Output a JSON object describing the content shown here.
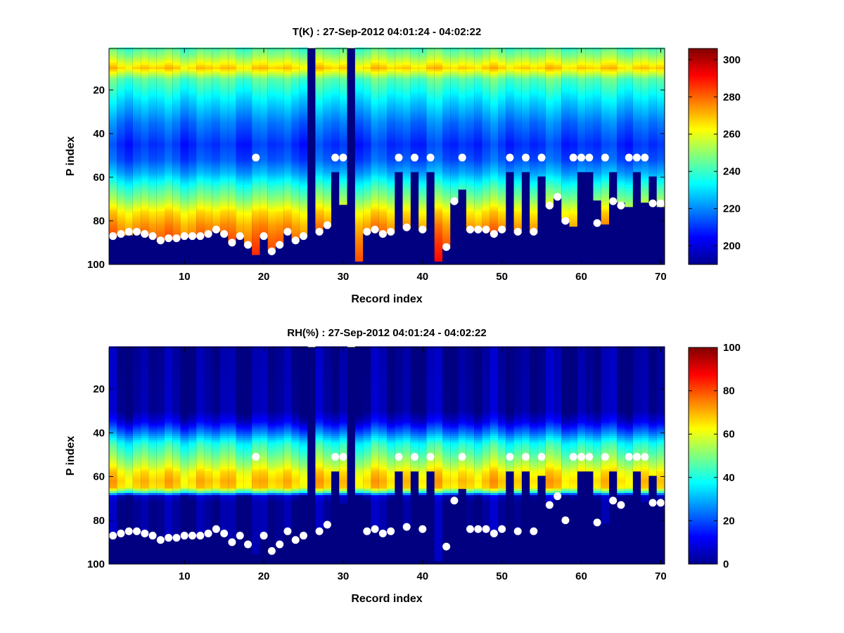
{
  "figure": {
    "background": "#ffffff"
  },
  "chart_data": [
    {
      "type": "heatmap",
      "title": "T(K) : 27-Sep-2012 04:01:24 - 04:02:22",
      "xlabel": "Record index",
      "ylabel": "P index",
      "xlim": [
        0.5,
        70.5
      ],
      "ylim": [
        1,
        100
      ],
      "y_reversed": true,
      "x_ticks": [
        10,
        20,
        30,
        40,
        50,
        60,
        70
      ],
      "y_ticks": [
        20,
        40,
        60,
        80,
        100
      ],
      "colormap": "jet",
      "fill_value": 190,
      "colorbar": {
        "range": [
          190,
          306
        ],
        "ticks": [
          200,
          220,
          240,
          260,
          280,
          300
        ]
      },
      "profile_anchors": {
        "p": [
          1,
          5,
          10,
          15,
          25,
          35,
          45,
          52,
          58,
          64,
          70,
          76,
          82,
          88,
          94,
          100
        ],
        "value": [
          242,
          252,
          268,
          244,
          230,
          218,
          210,
          214,
          224,
          238,
          250,
          265,
          274,
          280,
          284,
          288
        ]
      },
      "surface_p": [
        87,
        86,
        86,
        85,
        86,
        87,
        89,
        88,
        88,
        87,
        87,
        87,
        86,
        84,
        86,
        89,
        87,
        91,
        95,
        87,
        94,
        91,
        85,
        89,
        87,
        0,
        85,
        82,
        57,
        72,
        0,
        98,
        85,
        84,
        86,
        85,
        57,
        83,
        57,
        84,
        57,
        98,
        92,
        71,
        65,
        84,
        84,
        84,
        86,
        84,
        57,
        85,
        57,
        85,
        59,
        73,
        69,
        80,
        82,
        57,
        57,
        70,
        81,
        57,
        71,
        73,
        57,
        71,
        59,
        73
      ],
      "markers": [
        87,
        86,
        85,
        85,
        86,
        87,
        89,
        88,
        88,
        87,
        87,
        87,
        86,
        84,
        86,
        90,
        87,
        91,
        51,
        87,
        94,
        91,
        85,
        89,
        87,
        null,
        85,
        82,
        51,
        51,
        null,
        null,
        85,
        84,
        86,
        85,
        51,
        83,
        51,
        84,
        51,
        null,
        92,
        71,
        51,
        84,
        84,
        84,
        86,
        84,
        51,
        85,
        51,
        85,
        51,
        73,
        69,
        80,
        51,
        51,
        51,
        81,
        51,
        71,
        73,
        51,
        51,
        51,
        72,
        72
      ]
    },
    {
      "type": "heatmap",
      "title": "RH(%) : 27-Sep-2012 04:01:24 - 04:02:22",
      "xlabel": "Record index",
      "ylabel": "P index",
      "xlim": [
        0.5,
        70.5
      ],
      "ylim": [
        1,
        100
      ],
      "y_reversed": true,
      "x_ticks": [
        10,
        20,
        30,
        40,
        50,
        60,
        70
      ],
      "y_ticks": [
        20,
        40,
        60,
        80,
        100
      ],
      "colormap": "jet",
      "fill_value": 0,
      "colorbar": {
        "range": [
          0,
          100
        ],
        "ticks": [
          0,
          20,
          40,
          60,
          80,
          100
        ]
      },
      "profile_anchors": {
        "p": [
          1,
          30,
          35,
          40,
          45,
          50,
          55,
          58,
          62,
          65,
          67,
          68,
          69,
          72,
          100
        ],
        "value": [
          2,
          3,
          10,
          24,
          40,
          48,
          57,
          64,
          68,
          66,
          45,
          24,
          6,
          2,
          2
        ]
      },
      "surface_p": [
        87,
        86,
        86,
        85,
        86,
        87,
        89,
        88,
        88,
        87,
        87,
        87,
        86,
        84,
        86,
        89,
        87,
        91,
        95,
        87,
        94,
        91,
        85,
        89,
        87,
        0,
        85,
        82,
        57,
        72,
        0,
        98,
        85,
        84,
        86,
        85,
        57,
        83,
        57,
        84,
        57,
        98,
        92,
        71,
        65,
        84,
        84,
        84,
        86,
        84,
        57,
        85,
        57,
        85,
        59,
        73,
        69,
        80,
        82,
        57,
        57,
        70,
        81,
        57,
        71,
        73,
        57,
        71,
        59,
        73
      ],
      "markers": [
        87,
        86,
        85,
        85,
        86,
        87,
        89,
        88,
        88,
        87,
        87,
        87,
        86,
        84,
        86,
        90,
        87,
        91,
        51,
        87,
        94,
        91,
        85,
        89,
        87,
        null,
        85,
        82,
        51,
        51,
        null,
        null,
        85,
        84,
        86,
        85,
        51,
        83,
        51,
        84,
        51,
        null,
        92,
        71,
        51,
        84,
        84,
        84,
        86,
        84,
        51,
        85,
        51,
        85,
        51,
        73,
        69,
        80,
        51,
        51,
        51,
        81,
        51,
        71,
        73,
        51,
        51,
        51,
        72,
        72
      ]
    }
  ]
}
